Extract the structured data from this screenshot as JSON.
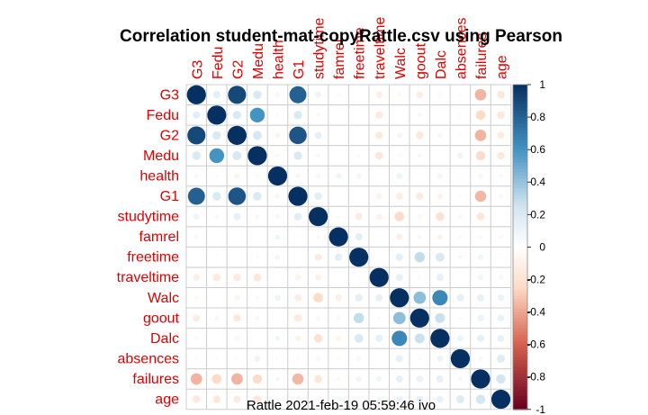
{
  "chart_data": {
    "type": "heatmap",
    "title": "Correlation student-mat-copyRattle.csv using Pearson",
    "footer": "Rattle 2021-feb-19 05:59:46 ivo",
    "variables": [
      "G3",
      "Fedu",
      "G2",
      "Medu",
      "health",
      "G1",
      "studytime",
      "famrel",
      "freetime",
      "traveltime",
      "Walc",
      "goout",
      "Dalc",
      "absences",
      "failures",
      "age"
    ],
    "matrix": [
      [
        1,
        0.15,
        0.9,
        0.2,
        -0.06,
        0.8,
        0.1,
        0.05,
        0.01,
        -0.12,
        -0.05,
        -0.13,
        -0.05,
        0.03,
        -0.36,
        -0.16
      ],
      [
        0.15,
        1,
        0.2,
        0.6,
        0.03,
        0.2,
        0.05,
        -0.01,
        -0.02,
        -0.15,
        0.02,
        0.06,
        0.0,
        0.03,
        -0.25,
        -0.16
      ],
      [
        0.9,
        0.2,
        1,
        0.22,
        -0.08,
        0.85,
        0.14,
        0.02,
        -0.01,
        -0.15,
        -0.08,
        -0.16,
        -0.06,
        -0.03,
        -0.36,
        -0.14
      ],
      [
        0.2,
        0.6,
        0.22,
        1,
        -0.05,
        0.2,
        0.06,
        0.0,
        0.03,
        -0.17,
        -0.05,
        0.06,
        0.02,
        0.1,
        -0.24,
        -0.16
      ],
      [
        -0.06,
        0.03,
        -0.08,
        -0.05,
        1,
        -0.07,
        -0.07,
        0.09,
        0.08,
        0.01,
        0.1,
        -0.01,
        0.08,
        -0.03,
        0.07,
        -0.06
      ],
      [
        0.8,
        0.2,
        0.85,
        0.2,
        -0.07,
        1,
        0.16,
        0.02,
        0.01,
        -0.09,
        -0.13,
        -0.15,
        -0.09,
        -0.03,
        -0.35,
        -0.06
      ],
      [
        0.1,
        0.05,
        0.14,
        0.06,
        -0.07,
        0.16,
        1,
        0.04,
        -0.14,
        -0.1,
        -0.25,
        -0.06,
        -0.2,
        -0.06,
        -0.17,
        -0.01
      ],
      [
        0.05,
        -0.01,
        0.02,
        0.0,
        0.09,
        0.02,
        0.04,
        1,
        0.15,
        -0.02,
        -0.11,
        0.06,
        -0.08,
        -0.04,
        -0.04,
        0.05
      ],
      [
        0.01,
        -0.02,
        -0.01,
        0.03,
        0.08,
        0.01,
        -0.14,
        0.15,
        1,
        -0.02,
        0.15,
        0.29,
        0.21,
        -0.06,
        0.09,
        0.02
      ],
      [
        -0.12,
        -0.15,
        -0.15,
        -0.17,
        0.01,
        -0.09,
        -0.1,
        -0.02,
        -0.02,
        1,
        0.14,
        0.03,
        0.14,
        -0.01,
        0.09,
        0.07
      ],
      [
        -0.05,
        0.02,
        -0.08,
        -0.05,
        0.1,
        -0.13,
        -0.25,
        -0.11,
        0.15,
        0.14,
        1,
        0.42,
        0.65,
        0.14,
        0.14,
        0.12
      ],
      [
        -0.13,
        0.06,
        -0.16,
        0.06,
        -0.01,
        -0.15,
        -0.06,
        0.06,
        0.29,
        0.03,
        0.42,
        1,
        0.27,
        0.04,
        0.12,
        0.13
      ],
      [
        -0.05,
        0.0,
        -0.06,
        0.02,
        0.08,
        -0.09,
        -0.2,
        -0.08,
        0.21,
        0.14,
        0.65,
        0.27,
        1,
        0.11,
        0.14,
        0.13
      ],
      [
        0.03,
        0.03,
        -0.03,
        0.1,
        -0.03,
        -0.03,
        -0.06,
        -0.04,
        -0.06,
        -0.01,
        0.14,
        0.04,
        0.11,
        1,
        0.06,
        0.18
      ],
      [
        -0.36,
        -0.25,
        -0.36,
        -0.24,
        0.07,
        -0.35,
        -0.17,
        -0.04,
        0.09,
        0.09,
        0.14,
        0.12,
        0.14,
        0.06,
        1,
        0.24
      ],
      [
        -0.16,
        -0.16,
        -0.14,
        -0.16,
        -0.06,
        -0.06,
        -0.01,
        0.05,
        0.02,
        0.07,
        0.12,
        0.13,
        0.13,
        0.18,
        0.24,
        1
      ]
    ],
    "colorbar": {
      "ticks": [
        "1",
        "0.8",
        "0.6",
        "0.4",
        "0.2",
        "0",
        "-0.2",
        "-0.4",
        "-0.6",
        "-0.8",
        "-1"
      ],
      "range": [
        -1,
        1
      ]
    },
    "colors": {
      "negative_strong": "#67001f",
      "negative_mid": "#d6604d",
      "negative_light": "#fddbc7",
      "neutral": "#ffffff",
      "positive_light": "#d1e5f0",
      "positive_mid": "#4393c3",
      "positive_strong": "#053061",
      "label": "#e00000",
      "grid": "#cccccc"
    }
  }
}
